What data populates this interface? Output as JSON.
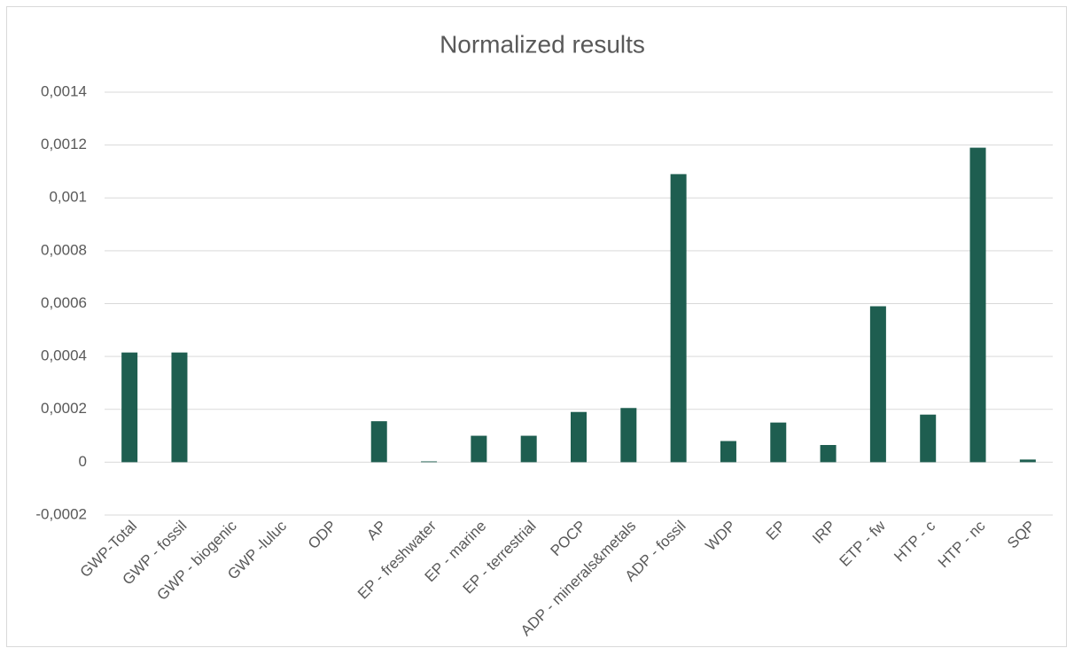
{
  "chart_data": {
    "type": "bar",
    "title": "Normalized results",
    "categories": [
      "GWP-Total",
      "GWP - fossil",
      "GWP - biogenic",
      "GWP -luluc",
      "ODP",
      "AP",
      "EP - freshwater",
      "EP - marine",
      "EP - terrestrial",
      "POCP",
      "ADP - minerals&metals",
      "ADP - fossil",
      "WDP",
      "EP",
      "IRP",
      "ETP - fw",
      "HTP - c",
      "HTP - nc",
      "SQP"
    ],
    "values": [
      0.000415,
      0.000415,
      0,
      0,
      0,
      0.000155,
      3e-06,
      0.0001,
      0.0001,
      0.00019,
      0.000205,
      0.00109,
      8e-05,
      0.00015,
      6.5e-05,
      0.00059,
      0.00018,
      0.00119,
      1e-05
    ],
    "color": "#1e5e50",
    "ylim": [
      -0.0002,
      0.0014
    ],
    "yticks": [
      {
        "value": -0.0002,
        "label": "-0,0002"
      },
      0,
      {
        "value": 0.0002,
        "label": "0,0002"
      },
      {
        "value": 0.0004,
        "label": "0,0004"
      },
      {
        "value": 0.0006,
        "label": "0,0006"
      },
      {
        "value": 0.0008,
        "label": "0,0008"
      },
      {
        "value": 0.001,
        "label": "0,001"
      },
      {
        "value": 0.0012,
        "label": "0,0012"
      },
      {
        "value": 0.0014,
        "label": "0,0014"
      }
    ],
    "grid": true
  }
}
